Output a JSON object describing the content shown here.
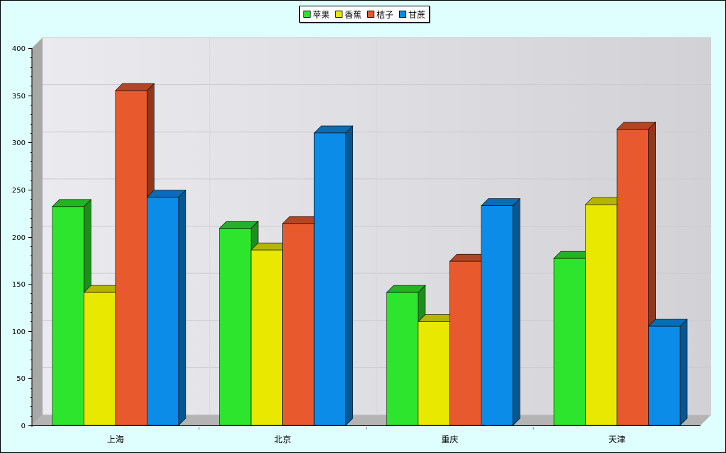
{
  "chart_data": {
    "type": "bar",
    "categories": [
      "上海",
      "北京",
      "重庆",
      "天津"
    ],
    "series": [
      {
        "name": "苹果",
        "color": "#2ee52e",
        "values": [
          232,
          209,
          141,
          177
        ]
      },
      {
        "name": "香蕉",
        "color": "#e8e800",
        "values": [
          141,
          186,
          110,
          234
        ]
      },
      {
        "name": "桔子",
        "color": "#e85a2e",
        "values": [
          355,
          214,
          174,
          314
        ]
      },
      {
        "name": "甘蔗",
        "color": "#0a8ce8",
        "values": [
          242,
          310,
          233,
          105
        ]
      }
    ],
    "ylim": [
      0,
      400
    ],
    "yticks": [
      "0",
      "50",
      "100",
      "150",
      "200",
      "250",
      "300",
      "350",
      "400"
    ],
    "title": "",
    "xlabel": "",
    "ylabel": "",
    "grid": true,
    "legend_position": "top-center",
    "style": "3d-clustered-bar"
  }
}
